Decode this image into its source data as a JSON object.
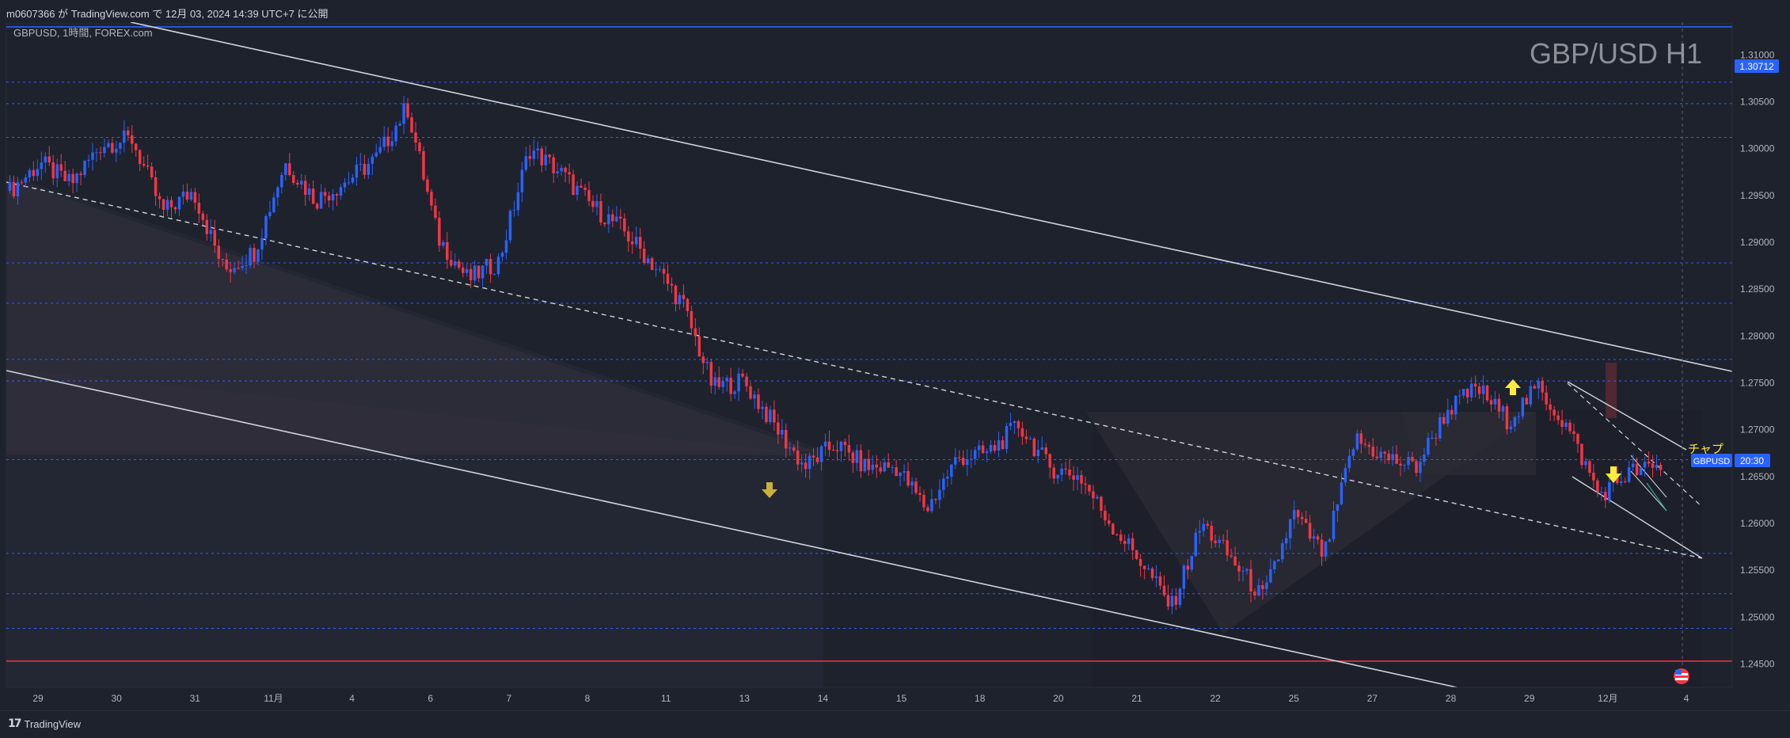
{
  "header": {
    "publish_text": "m0607366 が TradingView.com で 12月 03, 2024 14:39 UTC+7 に公開"
  },
  "symbol": {
    "info": "GBPUSD, 1時間, FOREX.com",
    "watermark": "GBP/USD H1",
    "badge_symbol": "GBPUSD",
    "badge_time": "20:30",
    "current_price_label": "1.30712",
    "partial_annotation": "チャプ"
  },
  "footer": {
    "logo_text": "TradingView"
  },
  "colors": {
    "background": "#1e222d",
    "bull": "#2962ff",
    "bear": "#f23645",
    "level_line": "#2962ff",
    "support_red": "#f23645",
    "channel_line": "#d1d4dc",
    "arrow_yellow": "#ffeb3b",
    "arrow_olive": "#c9b037"
  },
  "chart_data": {
    "type": "candlestick",
    "title": "GBP/USD H1",
    "symbol": "GBPUSD",
    "timeframe": "1時間",
    "source": "FOREX.com",
    "ylim": [
      1.2425,
      1.3135
    ],
    "y_ticks": [
      "1.31000",
      "1.30500",
      "1.30000",
      "1.29500",
      "1.29000",
      "1.28500",
      "1.28000",
      "1.27500",
      "1.27000",
      "1.26500",
      "1.26000",
      "1.25500",
      "1.25000",
      "1.24500"
    ],
    "x_ticks": [
      "29",
      "30",
      "31",
      "11月",
      "4",
      "6",
      "7",
      "8",
      "11",
      "13",
      "14",
      "15",
      "18",
      "20",
      "21",
      "22",
      "25",
      "27",
      "28",
      "29",
      "12月",
      "4"
    ],
    "horizontal_levels": [
      1.313,
      1.3071,
      1.3048,
      1.3012,
      1.2878,
      1.2835,
      1.2775,
      1.2752,
      1.2668,
      1.2568,
      1.2525,
      1.2488
    ],
    "support_line": 1.2453,
    "price_path": [
      [
        29,
        1.2955
      ],
      [
        29.5,
        1.2985
      ],
      [
        30,
        1.2962
      ],
      [
        30.5,
        1.3005
      ],
      [
        31,
        1.301
      ],
      [
        31.4,
        1.2932
      ],
      [
        31.8,
        1.2955
      ],
      [
        "11月",
        1.287
      ],
      [
        "11月+0.5",
        1.289
      ],
      [
        4,
        1.2985
      ],
      [
        4.5,
        1.2945
      ],
      [
        5,
        1.2965
      ],
      [
        5.5,
        1.299
      ],
      [
        6,
        1.3045
      ],
      [
        6.4,
        1.2905
      ],
      [
        7,
        1.286
      ],
      [
        7.5,
        1.288
      ],
      [
        8,
        1.3
      ],
      [
        8.5,
        1.2975
      ],
      [
        10,
        1.294
      ],
      [
        11,
        1.2915
      ],
      [
        12,
        1.2878
      ],
      [
        12.5,
        1.2835
      ],
      [
        13,
        1.2745
      ],
      [
        14,
        1.2752
      ],
      [
        14.5,
        1.2705
      ],
      [
        15,
        1.266
      ],
      [
        15.5,
        1.2685
      ],
      [
        16,
        1.266
      ],
      [
        17,
        1.266
      ],
      [
        18,
        1.2615
      ],
      [
        19,
        1.267
      ],
      [
        20,
        1.2675
      ],
      [
        20.5,
        1.2705
      ],
      [
        21,
        1.266
      ],
      [
        21.5,
        1.265
      ],
      [
        22,
        1.26
      ],
      [
        23,
        1.256
      ],
      [
        24,
        1.251
      ],
      [
        25,
        1.26
      ],
      [
        26,
        1.256
      ],
      [
        26.5,
        1.252
      ],
      [
        27,
        1.261
      ],
      [
        27.5,
        1.2565
      ],
      [
        28,
        1.269
      ],
      [
        28.5,
        1.267
      ],
      [
        29,
        1.266
      ],
      [
        29.5,
        1.272
      ],
      [
        30,
        1.2745
      ],
      [
        30.5,
        1.271
      ],
      [
        "12月",
        1.2745
      ],
      [
        "12月+0.5",
        1.27
      ],
      [
        "12月+1",
        1.263
      ],
      [
        "12月+1.5",
        1.2655
      ],
      [
        "12月+2",
        1.266
      ]
    ]
  }
}
